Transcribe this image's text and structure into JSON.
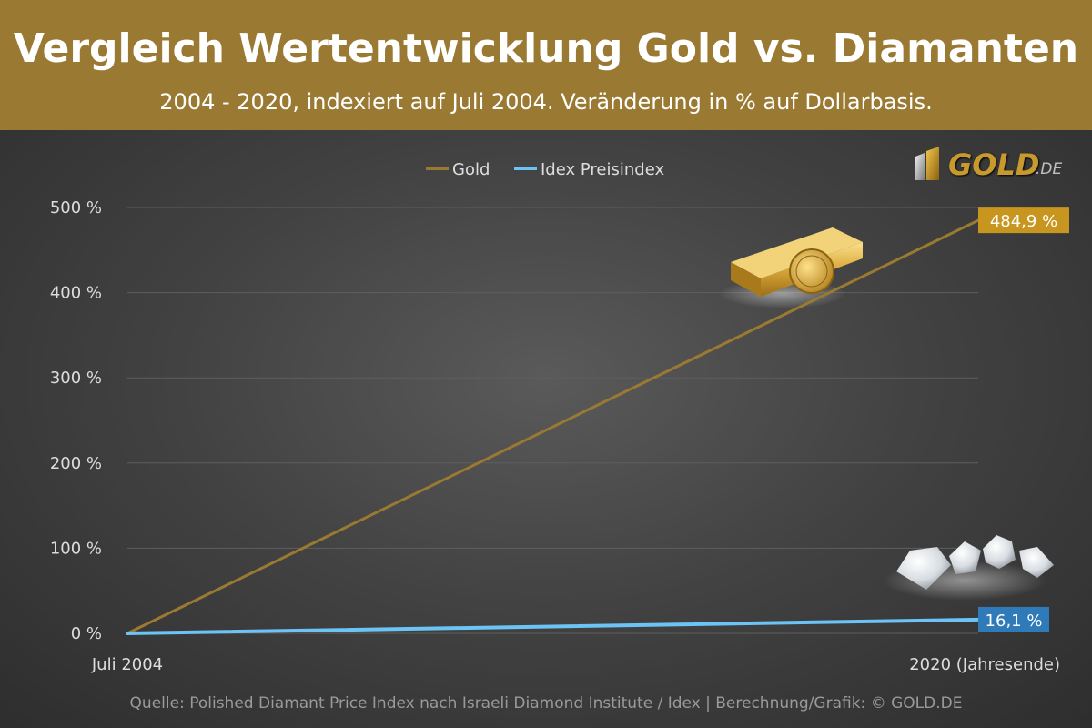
{
  "header": {
    "title": "Vergleich Wertentwicklung Gold vs. Diamanten",
    "subtitle": "2004 - 2020, indexiert auf Juli 2004. Veränderung in % auf Dollarbasis."
  },
  "logo": {
    "main": "GOLD",
    "suffix": ".DE"
  },
  "footer": {
    "source": "Quelle: Polished Diamant Price Index nach Israeli Diamond Institute / Idex | Berechnung/Grafik: © GOLD.DE"
  },
  "colors": {
    "header_bg": "#9a7a33",
    "gold_line": "#9a7a33",
    "idex_line": "#6cc3f5",
    "gold_label_bg": "#c8961e",
    "idex_label_bg": "#2f7ab8"
  },
  "chart_data": {
    "type": "line",
    "categories": [
      "Juli 2004",
      "2020 (Jahresende)"
    ],
    "ylim": [
      0,
      500
    ],
    "yticks": [
      0,
      100,
      200,
      300,
      400,
      500
    ],
    "ytick_labels": [
      "0 %",
      "100 %",
      "200 %",
      "300 %",
      "400 %",
      "500 %"
    ],
    "grid": true,
    "legend_position": "top-center",
    "series": [
      {
        "name": "Gold",
        "values": [
          0,
          484.9
        ],
        "end_label": "484,9 %",
        "color": "#9a7a33"
      },
      {
        "name": "Idex Preisindex",
        "values": [
          0,
          16.1
        ],
        "end_label": "16,1 %",
        "color": "#6cc3f5"
      }
    ]
  }
}
